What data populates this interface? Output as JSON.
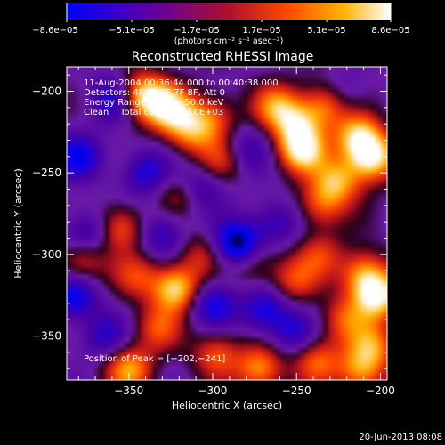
{
  "chart_data": {
    "type": "heatmap",
    "title": "Reconstructed RHESSI Image",
    "xlabel": "Heliocentric X (arcsec)",
    "ylabel": "Heliocentric Y (arcsec)",
    "xlim": [
      -387,
      -196
    ],
    "ylim": [
      -377,
      -185
    ],
    "xticks": [
      -350,
      -300,
      -250,
      -200
    ],
    "xtick_labels": [
      "−350",
      "−300",
      "−250",
      "−200"
    ],
    "yticks": [
      -200,
      -250,
      -300,
      -350
    ],
    "ytick_labels": [
      "−200",
      "−250",
      "−300",
      "−350"
    ],
    "colorbar": {
      "range": [
        -8.6e-05,
        8.6e-05
      ],
      "tick_labels": [
        "−8.6e−05",
        "−5.1e−05",
        "−1.7e−05",
        "1.7e−05",
        "5.1e−05",
        "8.6e−05"
      ],
      "units": "(photons cm⁻² s⁻¹ asec⁻²)",
      "colors": [
        "#0000ff",
        "#5a00a8",
        "#ad1030",
        "#ff4a00",
        "#ffb000",
        "#ffffff"
      ]
    },
    "info_lines": [
      "11‐Aug‐2004 00:36:44.000 to 00:40:38.000",
      "Detectors: 4F 5F 6F 7F 8F, Att 0",
      "Energy Range: 25.0 − 50.0 keV",
      "Clean    Total counts: 4.10E+03"
    ],
    "peak_label": "Position of Peak = [−202,−241]",
    "peak": [
      -202,
      -241
    ],
    "timestamp": "20‐Jun‐2013 08:08",
    "blobs": [
      {
        "x": -341,
        "y": -203,
        "v": 1.0
      },
      {
        "x": -325,
        "y": -211,
        "v": 0.9
      },
      {
        "x": -313,
        "y": -225,
        "v": 0.6
      },
      {
        "x": -300,
        "y": -216,
        "v": 0.55
      },
      {
        "x": -262,
        "y": -209,
        "v": 0.65
      },
      {
        "x": -250,
        "y": -220,
        "v": 0.7
      },
      {
        "x": -247,
        "y": -236,
        "v": 1.0
      },
      {
        "x": -232,
        "y": -208,
        "v": 0.8
      },
      {
        "x": -205,
        "y": -241,
        "v": 1.0
      },
      {
        "x": -213,
        "y": -228,
        "v": 0.9
      },
      {
        "x": -226,
        "y": -255,
        "v": 0.75
      },
      {
        "x": -236,
        "y": -270,
        "v": 0.55
      },
      {
        "x": -295,
        "y": -242,
        "v": 0.45
      },
      {
        "x": -318,
        "y": -262,
        "v": 0.5
      },
      {
        "x": -355,
        "y": -284,
        "v": 0.65
      },
      {
        "x": -378,
        "y": -304,
        "v": 0.55
      },
      {
        "x": -345,
        "y": -313,
        "v": 0.45
      },
      {
        "x": -322,
        "y": -321,
        "v": 1.0
      },
      {
        "x": -307,
        "y": -300,
        "v": 0.4
      },
      {
        "x": -276,
        "y": -305,
        "v": 0.45
      },
      {
        "x": -252,
        "y": -316,
        "v": 0.5
      },
      {
        "x": -236,
        "y": -300,
        "v": 0.45
      },
      {
        "x": -210,
        "y": -312,
        "v": 0.75
      },
      {
        "x": -202,
        "y": -326,
        "v": 1.0
      },
      {
        "x": -222,
        "y": -340,
        "v": 0.5
      },
      {
        "x": -333,
        "y": -345,
        "v": 0.5
      },
      {
        "x": -350,
        "y": -370,
        "v": 0.75
      },
      {
        "x": -298,
        "y": -361,
        "v": 0.55
      },
      {
        "x": -272,
        "y": -370,
        "v": 0.75
      },
      {
        "x": -238,
        "y": -365,
        "v": 0.6
      },
      {
        "x": -205,
        "y": -356,
        "v": 0.65
      },
      {
        "x": -212,
        "y": -372,
        "v": 0.7
      },
      {
        "x": -360,
        "y": -205,
        "v": -0.55
      },
      {
        "x": -380,
        "y": -240,
        "v": -0.6
      },
      {
        "x": -340,
        "y": -250,
        "v": -0.55
      },
      {
        "x": -309,
        "y": -259,
        "v": -0.6
      },
      {
        "x": -280,
        "y": -236,
        "v": -0.4
      },
      {
        "x": -285,
        "y": -294,
        "v": -1.0
      },
      {
        "x": -262,
        "y": -280,
        "v": -0.45
      },
      {
        "x": -375,
        "y": -287,
        "v": -0.55
      },
      {
        "x": -383,
        "y": -326,
        "v": -0.65
      },
      {
        "x": -300,
        "y": -330,
        "v": -0.6
      },
      {
        "x": -269,
        "y": -334,
        "v": -0.6
      },
      {
        "x": -252,
        "y": -348,
        "v": -0.45
      },
      {
        "x": -330,
        "y": -288,
        "v": -0.5
      },
      {
        "x": -224,
        "y": -203,
        "v": -0.4
      },
      {
        "x": -365,
        "y": -350,
        "v": -0.45
      }
    ]
  }
}
